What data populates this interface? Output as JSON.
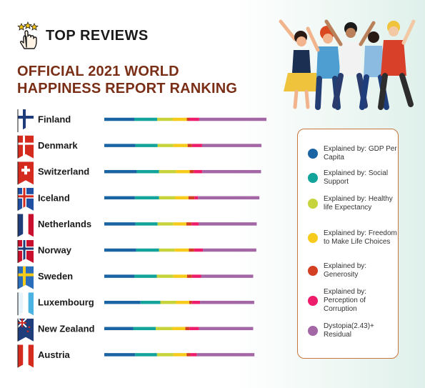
{
  "brand": {
    "name": "TOP REVIEWS",
    "icon": "hand-pointer-stars-icon"
  },
  "title": {
    "line1": "OFFICIAL 2021 WORLD",
    "line2": "HAPPINESS REPORT RANKING"
  },
  "illustration": "celebrating-group-of-friends",
  "chart_data": {
    "type": "bar",
    "stacked": true,
    "orientation": "horizontal",
    "categories": [
      "Finland",
      "Denmark",
      "Switzerland",
      "Iceland",
      "Netherlands",
      "Norway",
      "Sweden",
      "Luxembourg",
      "New Zealand",
      "Austria"
    ],
    "flags": [
      "finland-flag",
      "denmark-flag",
      "switzerland-flag",
      "iceland-flag",
      "netherlands-flag",
      "norway-flag",
      "sweden-flag",
      "luxembourg-flag",
      "new-zealand-flag",
      "austria-flag"
    ],
    "series": [
      {
        "name": "Explained by: GDP Per Capita",
        "color": "#1a64a3",
        "values": [
          1.45,
          1.5,
          1.57,
          1.48,
          1.5,
          1.54,
          1.45,
          1.75,
          1.4,
          1.49
        ]
      },
      {
        "name": "Explained by: Social Support",
        "color": "#12a39a",
        "values": [
          1.11,
          1.08,
          1.08,
          1.17,
          1.08,
          1.11,
          1.09,
          0.96,
          1.09,
          1.06
        ]
      },
      {
        "name": "Explained by: Healthy life Expectancy",
        "color": "#c7d33a",
        "values": [
          0.74,
          0.76,
          0.82,
          0.77,
          0.76,
          0.76,
          0.8,
          0.76,
          0.79,
          0.79
        ]
      },
      {
        "name": "Explained by: Freedom to Make Life Choices",
        "color": "#f7cb1b",
        "values": [
          0.69,
          0.69,
          0.66,
          0.65,
          0.63,
          0.68,
          0.66,
          0.64,
          0.64,
          0.64
        ]
      },
      {
        "name": "Explained by: Generosity",
        "color": "#d23f22",
        "values": [
          0.12,
          0.21,
          0.2,
          0.29,
          0.25,
          0.25,
          0.24,
          0.13,
          0.2,
          0.18
        ]
      },
      {
        "name": "Explained by: Perception of Corruption",
        "color": "#ee1d6b",
        "values": [
          0.48,
          0.49,
          0.41,
          0.17,
          0.35,
          0.43,
          0.44,
          0.39,
          0.46,
          0.31
        ]
      },
      {
        "name": "Dystopia(2.43)+ Residual",
        "color": "#a367a6",
        "values": [
          3.25,
          2.87,
          2.84,
          2.97,
          2.8,
          2.58,
          2.52,
          2.62,
          2.62,
          2.79
        ]
      }
    ]
  }
}
